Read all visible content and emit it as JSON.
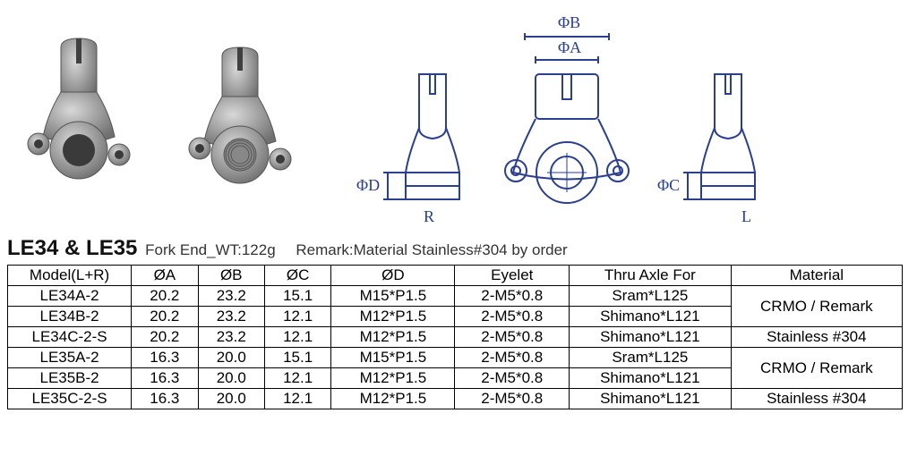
{
  "title": {
    "main": "LE34 & LE35",
    "sub": "Fork End_WT:122g",
    "remark": "Remark:Material Stainless#304 by order"
  },
  "diagram_labels": {
    "phiA": "ΦA",
    "phiB": "ΦB",
    "phiC": "ΦC",
    "phiD": "ΦD",
    "R": "R",
    "L": "L"
  },
  "table": {
    "columns": [
      "Model(L+R)",
      "ØA",
      "ØB",
      "ØC",
      "ØD",
      "Eyelet",
      "Thru Axle For",
      "Material"
    ],
    "rows": [
      {
        "model": "LE34A-2",
        "oa": "20.2",
        "ob": "23.2",
        "oc": "15.1",
        "od": "M15*P1.5",
        "eyelet": "2-M5*0.8",
        "axle": "Sram*L125",
        "mat": "CRMO / Remark",
        "mat_span": 2
      },
      {
        "model": "LE34B-2",
        "oa": "20.2",
        "ob": "23.2",
        "oc": "12.1",
        "od": "M12*P1.5",
        "eyelet": "2-M5*0.8",
        "axle": "Shimano*L121"
      },
      {
        "model": "LE34C-2-S",
        "oa": "20.2",
        "ob": "23.2",
        "oc": "12.1",
        "od": "M12*P1.5",
        "eyelet": "2-M5*0.8",
        "axle": "Shimano*L121",
        "mat": "Stainless #304",
        "mat_span": 1
      },
      {
        "model": "LE35A-2",
        "oa": "16.3",
        "ob": "20.0",
        "oc": "15.1",
        "od": "M15*P1.5",
        "eyelet": "2-M5*0.8",
        "axle": "Sram*L125",
        "mat": "CRMO / Remark",
        "mat_span": 2
      },
      {
        "model": "LE35B-2",
        "oa": "16.3",
        "ob": "20.0",
        "oc": "12.1",
        "od": "M12*P1.5",
        "eyelet": "2-M5*0.8",
        "axle": "Shimano*L121"
      },
      {
        "model": "LE35C-2-S",
        "oa": "16.3",
        "ob": "20.0",
        "oc": "12.1",
        "od": "M12*P1.5",
        "eyelet": "2-M5*0.8",
        "axle": "Shimano*L121",
        "mat": "Stainless #304",
        "mat_span": 1
      }
    ]
  },
  "colors": {
    "line": "#2a3f8f",
    "metal_light": "#cfcfcf",
    "metal_mid": "#9a9a9a",
    "metal_dark": "#6a6a6a"
  }
}
